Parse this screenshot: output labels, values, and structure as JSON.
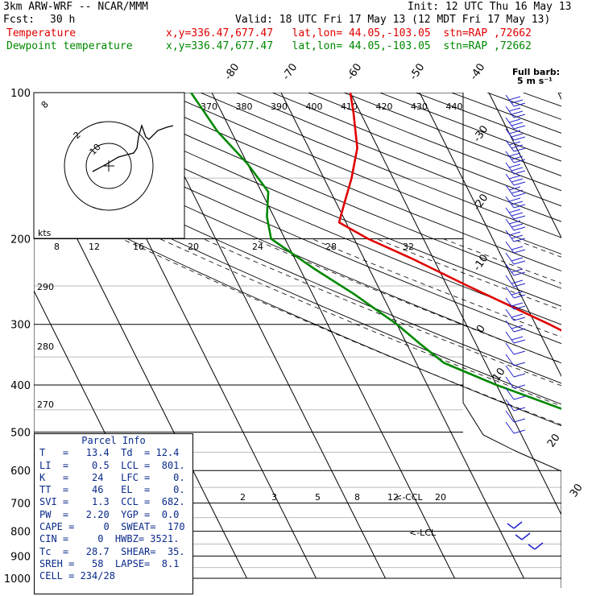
{
  "header": {
    "model": "3km ARW-WRF -- NCAR/MMM",
    "init": "Init: 12 UTC Thu 16 May 13",
    "fcst_label": "Fcst:",
    "fcst_value": "30 h",
    "valid": "Valid: 18 UTC Fri 17 May 13 (12 MDT Fri 17 May 13)",
    "temp_label": "Temperature",
    "temp_loc": "x,y=336.47,677.47   lat,lon= 44.05,-103.05  stn=RAP ,72662",
    "dew_label": "Dewpoint temperature",
    "dew_loc": "x,y=336.47,677.47   lat,lon= 44.05,-103.05  stn=RAP ,72662"
  },
  "chart_data": {
    "type": "line",
    "title": "Skew-T log-P sounding",
    "pressure_ticks": [
      "100",
      "200",
      "300",
      "400",
      "500",
      "600",
      "700",
      "800",
      "900",
      "1000"
    ],
    "isotherm_labels": [
      "-80",
      "-70",
      "-60",
      "-50",
      "-40",
      "-30",
      "-20",
      "-10",
      "0",
      "10",
      "20",
      "30",
      "40"
    ],
    "theta_labels": [
      "370",
      "380",
      "390",
      "400",
      "410",
      "420",
      "430",
      "440"
    ],
    "theta_e_labels": [
      "290",
      "280",
      "270"
    ],
    "mixing_ratio_labels": [
      "2",
      "3",
      "5",
      "8",
      "12",
      "20"
    ],
    "mixing_ratio_upper_labels": [
      "8",
      "12",
      "16",
      "20",
      "24",
      "28",
      "32"
    ],
    "annotations": {
      "ccl": "<-CCL",
      "lcl": "<-LCL",
      "hodo_units": "kts",
      "barb_legend": "Full barb:",
      "barb_units": "5 m s⁻¹",
      "hodo_rings": [
        "8",
        "2",
        "10"
      ]
    },
    "series": [
      {
        "name": "Temperature",
        "color": "#e00000",
        "p": [
          100,
          110,
          130,
          150,
          170,
          185,
          200,
          220,
          250,
          300,
          350,
          400,
          450,
          500,
          550,
          600,
          650,
          700,
          750,
          790,
          810,
          850,
          870,
          900
        ],
        "t": [
          -60,
          -61,
          -63,
          -66,
          -69,
          -71,
          -68,
          -63,
          -57,
          -48,
          -41,
          -35,
          -29,
          -23,
          -18,
          -12,
          -7,
          -1,
          5,
          10,
          12,
          12,
          13,
          12
        ]
      },
      {
        "name": "Dewpoint temperature",
        "color": "#008800",
        "p": [
          100,
          120,
          140,
          160,
          180,
          200,
          230,
          260,
          300,
          330,
          360,
          400,
          450,
          500,
          550,
          600,
          650,
          700,
          750,
          780,
          820,
          860,
          900
        ],
        "t": [
          -83,
          -82,
          -80,
          -79,
          -81,
          -82,
          -78,
          -74,
          -70,
          -68,
          -66,
          -60,
          -52,
          -44,
          -33,
          -20,
          -12,
          -11,
          -8,
          -4,
          -1,
          5,
          6
        ]
      }
    ]
  },
  "parcel_info": {
    "title": "Parcel Info",
    "rows": [
      "T   =   13.4  Td  = 12.4",
      "LI  =    0.5  LCL =  801.",
      "K   =    24   LFC =    0.",
      "TT  =    46   EL  =    0.",
      "SVI =    1.3  CCL =  682.",
      "PW  =   2.20  YGP =  0.0",
      "CAPE =     0  SWEAT=  170",
      "CIN =     0  HWBZ= 3521.",
      "Tc  =   28.7  SHEAR=  35.",
      "SREH =   58  LAPSE=  8.1",
      "CELL = 234/28"
    ]
  }
}
